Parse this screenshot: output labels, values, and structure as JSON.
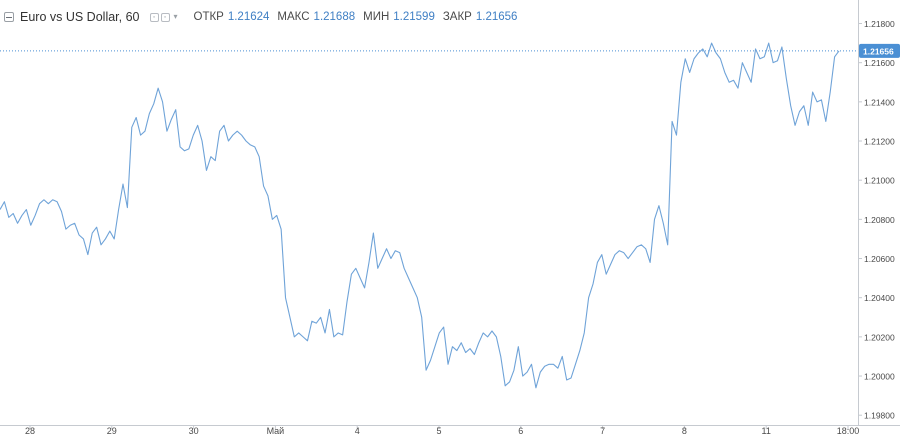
{
  "legend": {
    "symbol_title": "Euro vs US Dollar, 60",
    "open_label": "ОТКР",
    "open_value": "1.21624",
    "high_label": "МАКС",
    "high_value": "1.21688",
    "low_label": "МИН",
    "low_value": "1.21599",
    "close_label": "ЗАКР",
    "close_value": "1.21656"
  },
  "colors": {
    "line": "#6fa3d8",
    "price_badge": "#4a8fd4",
    "axis_text": "#4a4a4a",
    "grid_border": "#c6cad0"
  },
  "chart_data": {
    "type": "line",
    "title": "",
    "xlabel": "",
    "ylabel": "",
    "ylim": [
      1.1975,
      1.2192
    ],
    "x_tick_labels": [
      "28",
      "29",
      "30",
      "Май",
      "4",
      "5",
      "6",
      "7",
      "8",
      "11",
      "18:00"
    ],
    "y_tick_labels": [
      "1.21800",
      "1.21600",
      "1.21400",
      "1.21200",
      "1.21000",
      "1.20800",
      "1.20600",
      "1.20400",
      "1.20200",
      "1.20000",
      "1.19800"
    ],
    "last_price": "1.21656",
    "series": [
      {
        "values": [
          1.2085,
          1.2089,
          1.2081,
          1.2083,
          1.2078,
          1.2082,
          1.2085,
          1.2077,
          1.2082,
          1.2088,
          1.209,
          1.2088,
          1.209,
          1.2089,
          1.2084,
          1.2075,
          1.2077,
          1.2078,
          1.2072,
          1.207,
          1.2062,
          1.2073,
          1.2076,
          1.2067,
          1.207,
          1.2074,
          1.207,
          1.2085,
          1.2098,
          1.2086,
          1.2127,
          1.2132,
          1.2123,
          1.2125,
          1.2134,
          1.2139,
          1.2147,
          1.214,
          1.2125,
          1.2131,
          1.2136,
          1.2117,
          1.2115,
          1.2116,
          1.2123,
          1.2128,
          1.212,
          1.2105,
          1.2112,
          1.211,
          1.2125,
          1.2128,
          1.212,
          1.2123,
          1.2125,
          1.2123,
          1.212,
          1.2118,
          1.2117,
          1.2112,
          1.2097,
          1.2092,
          1.208,
          1.2082,
          1.2075,
          1.204,
          1.203,
          1.202,
          1.2022,
          1.202,
          1.2018,
          1.2028,
          1.2027,
          1.203,
          1.2022,
          1.2034,
          1.202,
          1.2022,
          1.2021,
          1.2038,
          1.2052,
          1.2055,
          1.205,
          1.2045,
          1.2058,
          1.2073,
          1.2055,
          1.206,
          1.2065,
          1.206,
          1.2064,
          1.2063,
          1.2055,
          1.205,
          1.2045,
          1.204,
          1.203,
          1.2003,
          1.2008,
          1.2015,
          1.2022,
          1.2025,
          1.2006,
          1.2015,
          1.2013,
          1.2017,
          1.2012,
          1.2014,
          1.2011,
          1.2017,
          1.2022,
          1.202,
          1.2023,
          1.202,
          1.201,
          1.1995,
          1.1997,
          1.2003,
          1.2015,
          1.2,
          1.2002,
          1.2006,
          1.1994,
          1.2002,
          1.2005,
          1.2006,
          1.2006,
          1.2004,
          1.201,
          1.1998,
          1.1999,
          1.2006,
          1.2013,
          1.2022,
          1.204,
          1.2047,
          1.2058,
          1.2062,
          1.2052,
          1.2057,
          1.2062,
          1.2064,
          1.2063,
          1.206,
          1.2063,
          1.2066,
          1.2067,
          1.2065,
          1.2058,
          1.208,
          1.2087,
          1.2078,
          1.2067,
          1.213,
          1.2123,
          1.215,
          1.2162,
          1.2155,
          1.2162,
          1.2165,
          1.2167,
          1.2163,
          1.217,
          1.2165,
          1.2162,
          1.2155,
          1.215,
          1.2151,
          1.2147,
          1.216,
          1.2155,
          1.215,
          1.2167,
          1.2162,
          1.2163,
          1.217,
          1.216,
          1.2161,
          1.2168,
          1.2152,
          1.2138,
          1.2128,
          1.2135,
          1.2138,
          1.2128,
          1.2145,
          1.214,
          1.2141,
          1.213,
          1.2145,
          1.2163,
          1.2166
        ]
      }
    ]
  }
}
